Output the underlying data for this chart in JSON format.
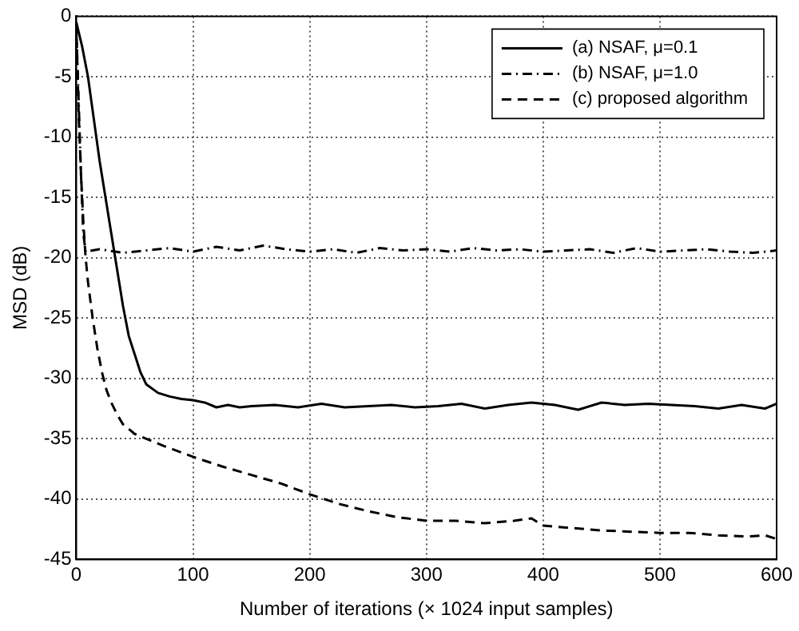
{
  "chart_data": {
    "type": "line",
    "xlabel": "Number of iterations (× 1024 input samples)",
    "ylabel": "MSD (dB)",
    "xlim": [
      0,
      600
    ],
    "xticks": [
      0,
      100,
      200,
      300,
      400,
      500,
      600
    ],
    "ylim": [
      -45,
      0
    ],
    "yticks": [
      -45,
      -40,
      -35,
      -30,
      -25,
      -20,
      -15,
      -10,
      -5,
      0
    ],
    "grid": true,
    "legend": "top right",
    "marker": "none",
    "series": [
      {
        "name": "(a) NSAF, μ=0.1",
        "color": "#000000",
        "line_style": "solid",
        "x": [
          0,
          5,
          10,
          15,
          20,
          25,
          30,
          35,
          40,
          45,
          50,
          55,
          60,
          70,
          80,
          90,
          100,
          110,
          120,
          130,
          140,
          150,
          170,
          190,
          210,
          230,
          250,
          270,
          290,
          310,
          330,
          350,
          370,
          390,
          410,
          430,
          450,
          470,
          490,
          510,
          530,
          550,
          570,
          590,
          600
        ],
        "values": [
          -0.5,
          -2.5,
          -5,
          -8.5,
          -12,
          -15,
          -18,
          -21,
          -24,
          -26.5,
          -28,
          -29.5,
          -30.5,
          -31.2,
          -31.5,
          -31.7,
          -31.8,
          -32,
          -32.4,
          -32.2,
          -32.4,
          -32.3,
          -32.2,
          -32.4,
          -32.1,
          -32.4,
          -32.3,
          -32.2,
          -32.4,
          -32.3,
          -32.1,
          -32.5,
          -32.2,
          -32,
          -32.2,
          -32.6,
          -32,
          -32.2,
          -32.1,
          -32.2,
          -32.3,
          -32.5,
          -32.2,
          -32.5,
          -32.1
        ]
      },
      {
        "name": "(b) NSAF, μ=1.0",
        "color": "#000000",
        "line_style": "dashdot",
        "x": [
          0,
          2,
          4,
          6,
          8,
          20,
          40,
          60,
          80,
          100,
          120,
          140,
          160,
          180,
          200,
          220,
          240,
          260,
          280,
          300,
          320,
          340,
          360,
          380,
          400,
          420,
          440,
          460,
          480,
          500,
          520,
          540,
          560,
          580,
          600
        ],
        "values": [
          -1,
          -7,
          -13,
          -18,
          -19.5,
          -19.3,
          -19.6,
          -19.4,
          -19.2,
          -19.5,
          -19.1,
          -19.4,
          -19,
          -19.3,
          -19.5,
          -19.3,
          -19.6,
          -19.2,
          -19.4,
          -19.3,
          -19.5,
          -19.2,
          -19.4,
          -19.3,
          -19.5,
          -19.4,
          -19.3,
          -19.6,
          -19.2,
          -19.5,
          -19.4,
          -19.3,
          -19.5,
          -19.6,
          -19.4
        ]
      },
      {
        "name": "(c) proposed algorithm",
        "color": "#000000",
        "line_style": "dashed",
        "x": [
          0,
          2,
          4,
          6,
          8,
          10,
          14,
          18,
          22,
          26,
          30,
          35,
          40,
          50,
          60,
          75,
          100,
          125,
          150,
          175,
          200,
          225,
          250,
          275,
          300,
          325,
          350,
          375,
          390,
          400,
          425,
          450,
          475,
          500,
          525,
          550,
          575,
          590,
          600
        ],
        "values": [
          -0.5,
          -8,
          -13,
          -17,
          -20,
          -22,
          -25,
          -27.5,
          -29.5,
          -31,
          -32,
          -33,
          -33.8,
          -34.6,
          -35,
          -35.6,
          -36.5,
          -37.3,
          -38,
          -38.7,
          -39.6,
          -40.4,
          -41,
          -41.5,
          -41.8,
          -41.8,
          -42,
          -41.8,
          -41.6,
          -42.2,
          -42.4,
          -42.6,
          -42.7,
          -42.8,
          -42.8,
          -43,
          -43.1,
          -43,
          -43.3
        ]
      }
    ]
  }
}
